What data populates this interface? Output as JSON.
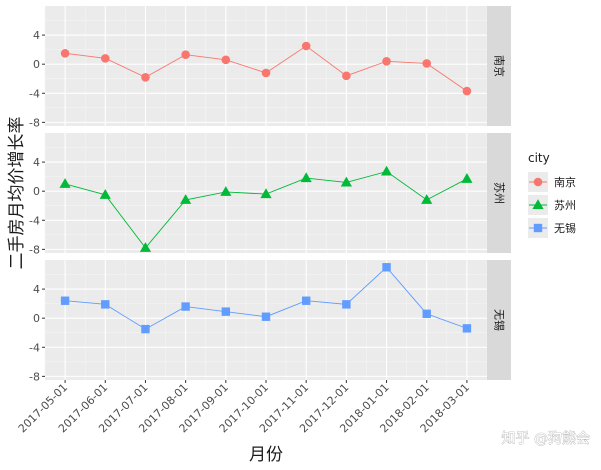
{
  "chart_data": {
    "type": "line",
    "facet": "vertical",
    "x": [
      "2017-05-01",
      "2017-06-01",
      "2017-07-01",
      "2017-08-01",
      "2017-09-01",
      "2017-10-01",
      "2017-11-01",
      "2017-12-01",
      "2018-01-01",
      "2018-02-01",
      "2018-03-01"
    ],
    "xlabel": "月份",
    "ylabel": "二手房月均价增长率",
    "ylim": [
      -8.5,
      8
    ],
    "yticks": [
      -8,
      -4,
      0,
      4
    ],
    "grid": true,
    "legend_title": "city",
    "legend_position": "right",
    "series": [
      {
        "name": "南京",
        "color": "#F8766D",
        "marker": "circle",
        "values": [
          1.5,
          0.8,
          -1.8,
          1.3,
          0.6,
          -1.2,
          2.5,
          -1.6,
          0.4,
          0.1,
          -3.7
        ]
      },
      {
        "name": "苏州",
        "color": "#00BA38",
        "marker": "triangle",
        "values": [
          1.0,
          -0.5,
          -7.8,
          -1.2,
          -0.1,
          -0.4,
          1.8,
          1.2,
          2.7,
          -1.2,
          1.7
        ]
      },
      {
        "name": "无锡",
        "color": "#619CFF",
        "marker": "square",
        "values": [
          2.4,
          1.9,
          -1.5,
          1.6,
          0.9,
          0.2,
          2.4,
          1.9,
          7.0,
          0.6,
          -1.4
        ]
      }
    ]
  },
  "watermark": "知乎 @狗熊会"
}
